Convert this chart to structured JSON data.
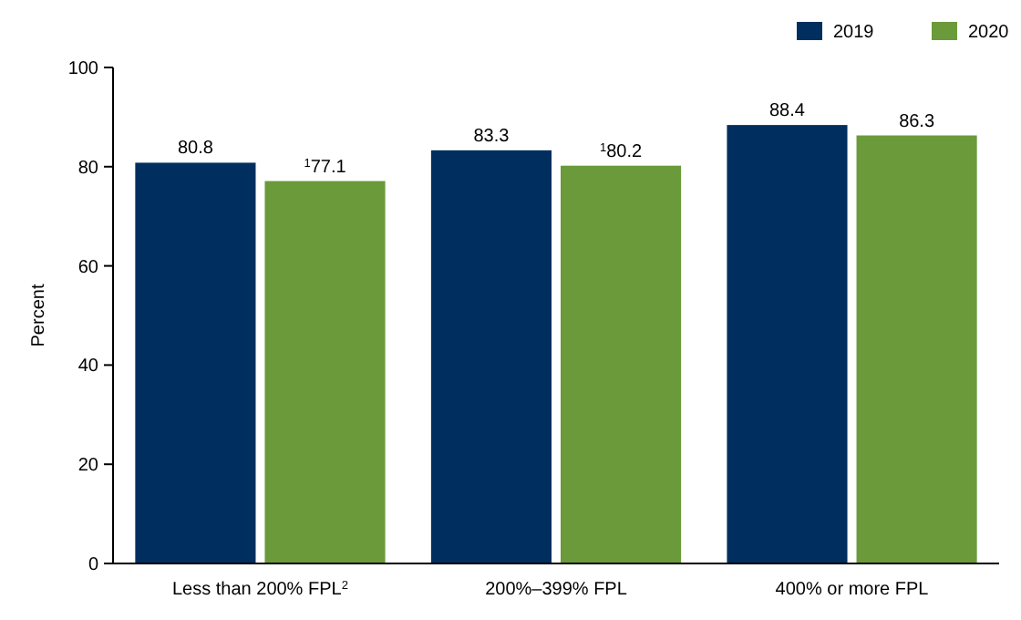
{
  "chart_data": {
    "type": "bar",
    "ylabel": "Percent",
    "categories": [
      "Less than 200% FPL$^{2}$",
      "200%–399% FPL",
      "400% or more FPL"
    ],
    "series": [
      {
        "name": "2019",
        "color": "#002f5f",
        "values": [
          80.8,
          83.3,
          88.4
        ],
        "value_labels": [
          "80.8",
          "83.3",
          "88.4"
        ]
      },
      {
        "name": "2020",
        "color": "#6a9a3a",
        "values": [
          77.1,
          80.2,
          86.3
        ],
        "value_labels": [
          "$^{1}$77.1",
          "$^{1}$80.2",
          "86.3"
        ]
      }
    ],
    "ylim": [
      0,
      100
    ],
    "yticks": [
      0,
      20,
      40,
      60,
      80,
      100
    ],
    "legend": "top right",
    "grid": false
  }
}
